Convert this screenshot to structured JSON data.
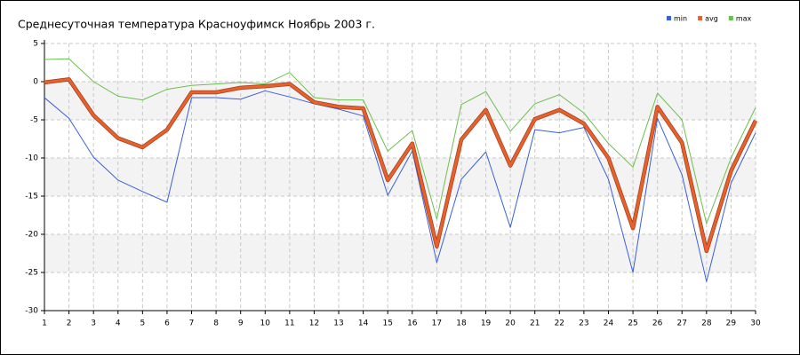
{
  "chart_data": {
    "type": "line",
    "title": "Среднесуточная температура Красноуфимск  Ноябрь 2003 г.",
    "categories": [
      "1",
      "2",
      "3",
      "4",
      "5",
      "6",
      "7",
      "8",
      "9",
      "10",
      "11",
      "12",
      "13",
      "14",
      "15",
      "16",
      "17",
      "18",
      "19",
      "20",
      "21",
      "22",
      "23",
      "24",
      "25",
      "26",
      "27",
      "28",
      "29",
      "30"
    ],
    "series": [
      {
        "name": "min",
        "color": "#3b5fd9",
        "values": [
          -2.1,
          -4.8,
          -9.9,
          -12.9,
          -14.4,
          -15.8,
          -2.1,
          -2.1,
          -2.3,
          -1.2,
          -2.0,
          -2.9,
          -3.6,
          -4.5,
          -14.9,
          -9.1,
          -23.7,
          -12.8,
          -9.2,
          -19.1,
          -6.3,
          -6.7,
          -6.0,
          -12.8,
          -25.0,
          -4.8,
          -12.2,
          -26.2,
          -13.3,
          -6.7
        ]
      },
      {
        "name": "avg",
        "color": "#e8612c",
        "values": [
          -0.1,
          0.3,
          -4.4,
          -7.4,
          -8.6,
          -6.3,
          -1.4,
          -1.4,
          -0.8,
          -0.6,
          -0.3,
          -2.7,
          -3.3,
          -3.5,
          -12.9,
          -8.1,
          -21.6,
          -7.6,
          -3.7,
          -11.0,
          -4.9,
          -3.7,
          -5.5,
          -10.0,
          -19.2,
          -3.3,
          -8.0,
          -22.2,
          -11.7,
          -5.1
        ]
      },
      {
        "name": "max",
        "color": "#6cbf4f",
        "values": [
          2.9,
          3.0,
          0.0,
          -1.9,
          -2.4,
          -1.0,
          -0.5,
          -0.3,
          -0.1,
          -0.3,
          1.2,
          -2.1,
          -2.4,
          -2.4,
          -9.1,
          -6.4,
          -18.0,
          -3.0,
          -1.3,
          -6.5,
          -2.9,
          -1.7,
          -4.1,
          -8.1,
          -11.2,
          -1.5,
          -5.0,
          -18.6,
          -10.0,
          -3.4
        ]
      }
    ],
    "ylim": [
      -30,
      5
    ],
    "yticks": [
      5,
      0,
      -5,
      -10,
      -15,
      -20,
      -25,
      -30
    ],
    "grid": true,
    "legend": "top-right"
  }
}
